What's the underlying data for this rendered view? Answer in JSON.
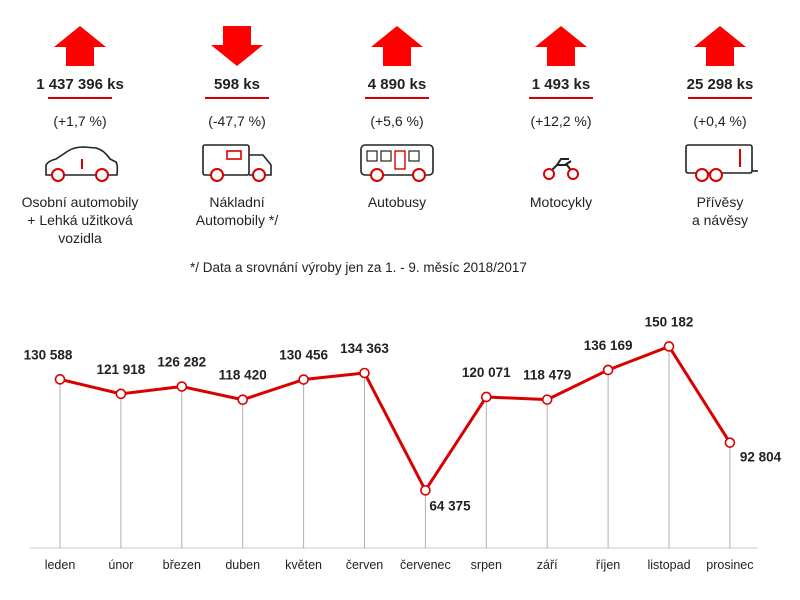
{
  "categories": [
    {
      "id": "cars",
      "value": "1 437 396 ks",
      "change": "(+1,7 %)",
      "direction": "up",
      "label": "Osobní automobily\n+ Lehká užitková\nvozidla",
      "icon": "car-icon"
    },
    {
      "id": "trucks",
      "value": "598 ks",
      "change": "(-47,7 %)",
      "direction": "down",
      "label": "Nákladní\nAutomobily */",
      "icon": "truck-icon"
    },
    {
      "id": "buses",
      "value": "4 890 ks",
      "change": "(+5,6 %)",
      "direction": "up",
      "label": "Autobusy",
      "icon": "bus-icon"
    },
    {
      "id": "moto",
      "value": "1 493 ks",
      "change": "(+12,2 %)",
      "direction": "up",
      "label": "Motocykly",
      "icon": "motorcycle-icon"
    },
    {
      "id": "trailers",
      "value": "25 298 ks",
      "change": "(+0,4 %)",
      "direction": "up",
      "label": "Přívěsy\na návěsy",
      "icon": "trailer-icon"
    }
  ],
  "footnote": "*/ Data a srovnání výroby jen za 1. - 9. měsíc 2018/2017",
  "colors": {
    "accent": "#d90000",
    "point_fill": "#ffffff",
    "drop_line": "#b0b0b0"
  },
  "chart_data": {
    "type": "line",
    "categories": [
      "leden",
      "únor",
      "březen",
      "duben",
      "květen",
      "červen",
      "červenec",
      "srpen",
      "září",
      "říjen",
      "listopad",
      "prosinec"
    ],
    "values": [
      130588,
      121918,
      126282,
      118420,
      130456,
      134363,
      64375,
      120071,
      118479,
      136169,
      150182,
      92804
    ],
    "value_labels": [
      "130 588",
      "121 918",
      "126 282",
      "118 420",
      "130 456",
      "134 363",
      "64 375",
      "120 071",
      "118 479",
      "136 169",
      "150 182",
      "92 804"
    ],
    "title": "",
    "xlabel": "",
    "ylabel": "",
    "ylim": [
      30000,
      160000
    ],
    "grid": false,
    "drop_lines": true
  }
}
